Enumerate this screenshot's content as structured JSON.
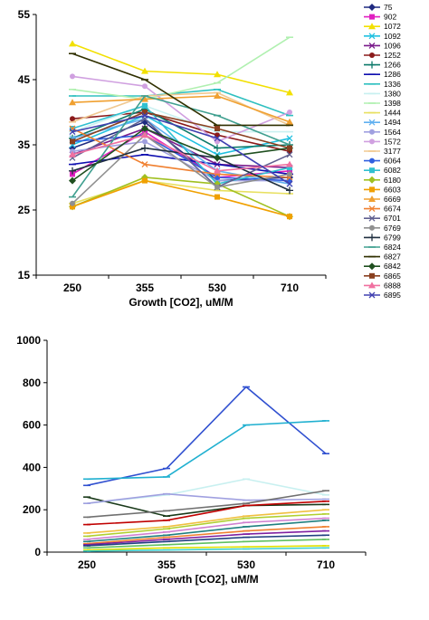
{
  "chart_data": [
    {
      "type": "line",
      "categories": [
        "250",
        "355",
        "530",
        "710"
      ],
      "xlabel": "Growth [CO2], uM/M",
      "ylabel": "",
      "ylim": [
        15,
        55
      ],
      "yticks": [
        15,
        25,
        35,
        45,
        55
      ],
      "legend": "right",
      "series": [
        {
          "name": "75",
          "color": "#1f2a80",
          "marker": "diamond",
          "values": [
            34.5,
            38.5,
            29.5,
            30.0
          ]
        },
        {
          "name": "902",
          "color": "#e020c0",
          "marker": "square",
          "values": [
            30.5,
            37.0,
            30.0,
            31.0
          ]
        },
        {
          "name": "1072",
          "color": "#f2e000",
          "marker": "triangle",
          "values": [
            50.5,
            46.3,
            45.8,
            43.0
          ]
        },
        {
          "name": "1092",
          "color": "#20c0e0",
          "marker": "x",
          "values": [
            35.0,
            39.5,
            33.5,
            36.0
          ]
        },
        {
          "name": "1096",
          "color": "#7a1a8a",
          "marker": "x",
          "values": [
            33.5,
            37.5,
            32.0,
            31.5
          ]
        },
        {
          "name": "1252",
          "color": "#8b1a1a",
          "marker": "circle",
          "values": [
            39.0,
            40.0,
            36.5,
            34.0
          ]
        },
        {
          "name": "1266",
          "color": "#0d7a6a",
          "marker": "plus",
          "values": [
            36.0,
            40.5,
            34.5,
            35.0
          ]
        },
        {
          "name": "1286",
          "color": "#1010b0",
          "marker": "dash",
          "values": [
            32.0,
            33.5,
            32.0,
            30.5
          ]
        },
        {
          "name": "1336",
          "color": "#30c0c0",
          "marker": "dash",
          "values": [
            42.5,
            42.5,
            43.5,
            39.5
          ]
        },
        {
          "name": "1380",
          "color": "#c8f0f0",
          "marker": "dash",
          "values": [
            37.0,
            41.0,
            37.0,
            37.0
          ]
        },
        {
          "name": "1398",
          "color": "#b0f0b0",
          "marker": "dash",
          "values": [
            43.5,
            42.0,
            44.5,
            51.5
          ]
        },
        {
          "name": "1444",
          "color": "#e8e060",
          "marker": "dash",
          "values": [
            26.0,
            29.5,
            28.0,
            27.5
          ]
        },
        {
          "name": "1494",
          "color": "#60b0f0",
          "marker": "x",
          "values": [
            36.0,
            39.0,
            31.0,
            29.0
          ]
        },
        {
          "name": "1564",
          "color": "#a0a0e0",
          "marker": "circle",
          "values": [
            34.0,
            35.5,
            29.5,
            29.5
          ]
        },
        {
          "name": "1572",
          "color": "#d0a0e0",
          "marker": "circle",
          "values": [
            45.5,
            44.0,
            35.5,
            40.0
          ]
        },
        {
          "name": "3177",
          "color": "#f0c890",
          "marker": "dash",
          "values": [
            38.5,
            42.5,
            43.0,
            38.0
          ]
        },
        {
          "name": "6064",
          "color": "#3060e0",
          "marker": "circle",
          "values": [
            35.5,
            36.5,
            30.0,
            29.5
          ]
        },
        {
          "name": "6082",
          "color": "#30c0d0",
          "marker": "square",
          "values": [
            37.5,
            41.0,
            29.0,
            31.5
          ]
        },
        {
          "name": "6180",
          "color": "#a0c020",
          "marker": "diamond",
          "values": [
            25.5,
            30.0,
            29.0,
            24.0
          ]
        },
        {
          "name": "6603",
          "color": "#f0a000",
          "marker": "square",
          "values": [
            25.5,
            29.5,
            27.0,
            24.0
          ]
        },
        {
          "name": "6669",
          "color": "#f0a030",
          "marker": "triangle",
          "values": [
            41.5,
            42.0,
            42.5,
            38.5
          ]
        },
        {
          "name": "6674",
          "color": "#f08030",
          "marker": "x",
          "values": [
            37.5,
            32.0,
            30.5,
            30.0
          ]
        },
        {
          "name": "6701",
          "color": "#606090",
          "marker": "x",
          "values": [
            33.0,
            39.0,
            28.5,
            33.5
          ]
        },
        {
          "name": "6769",
          "color": "#909090",
          "marker": "circle",
          "values": [
            26.0,
            36.5,
            28.5,
            30.5
          ]
        },
        {
          "name": "6799",
          "color": "#203040",
          "marker": "plus",
          "values": [
            31.0,
            34.5,
            33.0,
            28.0
          ]
        },
        {
          "name": "6824",
          "color": "#40a090",
          "marker": "dash",
          "values": [
            27.0,
            42.5,
            39.5,
            35.0
          ]
        },
        {
          "name": "6827",
          "color": "#303000",
          "marker": "dash",
          "values": [
            49.0,
            45.0,
            38.0,
            38.0
          ]
        },
        {
          "name": "6842",
          "color": "#205020",
          "marker": "diamond",
          "values": [
            29.5,
            37.5,
            33.0,
            34.5
          ]
        },
        {
          "name": "6865",
          "color": "#8a4020",
          "marker": "square",
          "values": [
            35.5,
            40.0,
            37.5,
            34.5
          ]
        },
        {
          "name": "6888",
          "color": "#f070a0",
          "marker": "triangle",
          "values": [
            33.5,
            36.5,
            31.0,
            32.0
          ]
        },
        {
          "name": "6895",
          "color": "#4040b0",
          "marker": "x",
          "values": [
            37.0,
            39.5,
            36.0,
            29.0
          ]
        }
      ]
    },
    {
      "type": "line",
      "categories": [
        "250",
        "355",
        "530",
        "710"
      ],
      "xlabel": "Growth [CO2], uM/M",
      "ylabel": "",
      "ylim": [
        0,
        1000
      ],
      "yticks": [
        0,
        200,
        400,
        600,
        800,
        1000
      ],
      "series": [
        {
          "color": "#3050d0",
          "values": [
            315,
            395,
            780,
            465
          ]
        },
        {
          "color": "#20b0d0",
          "values": [
            345,
            355,
            600,
            620
          ]
        },
        {
          "color": "#c8f0f0",
          "values": [
            230,
            270,
            345,
            270
          ]
        },
        {
          "color": "#1a3a1a",
          "values": [
            260,
            170,
            220,
            225
          ]
        },
        {
          "color": "#a0a0e0",
          "values": [
            230,
            275,
            245,
            250
          ]
        },
        {
          "color": "#707070",
          "values": [
            165,
            195,
            230,
            290
          ]
        },
        {
          "color": "#c00000",
          "values": [
            130,
            150,
            220,
            240
          ]
        },
        {
          "color": "#f0c040",
          "values": [
            90,
            120,
            170,
            200
          ]
        },
        {
          "color": "#b0d030",
          "values": [
            75,
            110,
            160,
            180
          ]
        },
        {
          "color": "#d080d0",
          "values": [
            60,
            95,
            140,
            160
          ]
        },
        {
          "color": "#208080",
          "values": [
            50,
            80,
            120,
            150
          ]
        },
        {
          "color": "#f08030",
          "values": [
            40,
            70,
            100,
            120
          ]
        },
        {
          "color": "#8020a0",
          "values": [
            35,
            60,
            85,
            100
          ]
        },
        {
          "color": "#204080",
          "values": [
            30,
            50,
            70,
            80
          ]
        },
        {
          "color": "#60c060",
          "values": [
            20,
            35,
            50,
            60
          ]
        },
        {
          "color": "#e0e000",
          "values": [
            10,
            20,
            25,
            30
          ]
        },
        {
          "color": "#40d0d0",
          "values": [
            5,
            10,
            15,
            20
          ]
        }
      ]
    }
  ]
}
